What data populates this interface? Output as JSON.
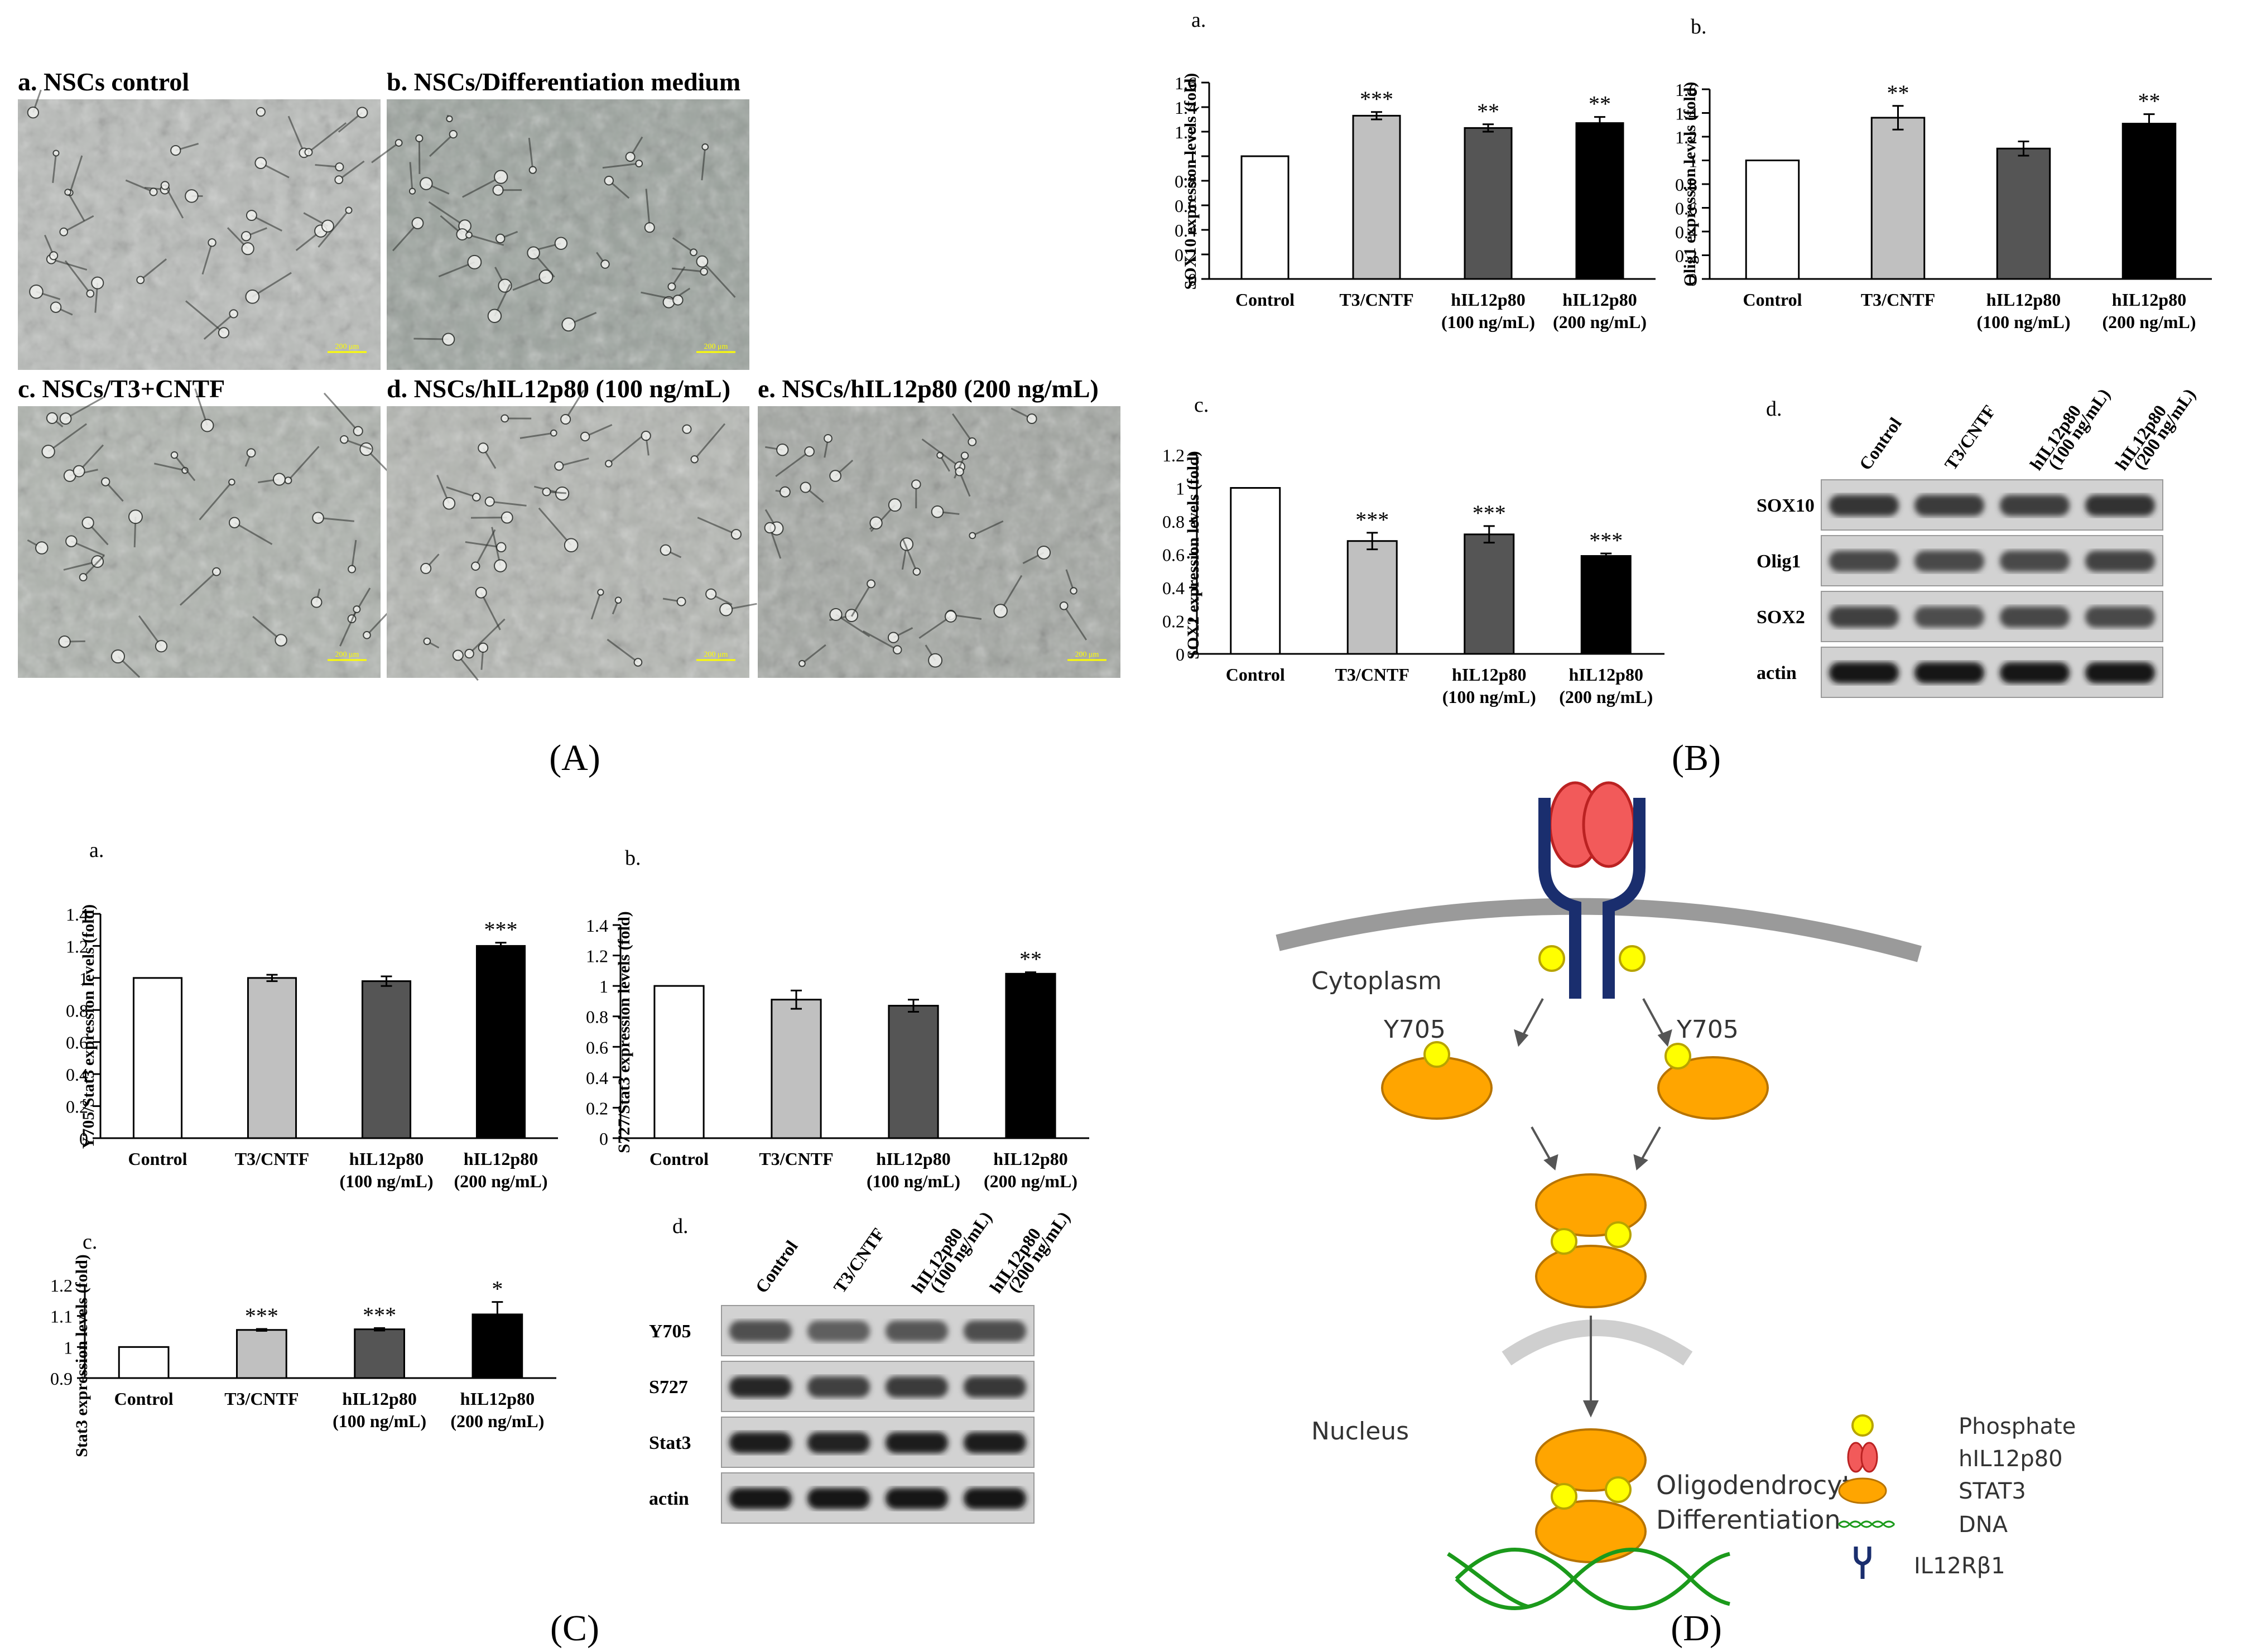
{
  "panel_labels": {
    "A": "(A)",
    "B": "(B)",
    "C": "(C)",
    "D": "(D)"
  },
  "micrographs": [
    {
      "label": "a. NSCs control",
      "scale": "200 μm"
    },
    {
      "label": "b. NSCs/Differentiation medium",
      "scale": "200 μm"
    },
    {
      "label": "c. NSCs/T3+CNTF",
      "scale": "200 μm"
    },
    {
      "label": "d. NSCs/hIL12p80 (100 ng/mL)",
      "scale": "200 μm"
    },
    {
      "label": "e. NSCs/hIL12p80 (200 ng/mL)",
      "scale": "200 μm"
    }
  ],
  "categories": [
    [
      "Control"
    ],
    [
      "T3/CNTF"
    ],
    [
      "hIL12p80",
      "(100 ng/mL)"
    ],
    [
      "hIL12p80",
      "(200 ng/mL)"
    ]
  ],
  "bar_colors": [
    "#ffffff",
    "#c0c0c0",
    "#555555",
    "#000000"
  ],
  "chart_data": [
    {
      "type": "bar",
      "panel": "B",
      "sublabel": "a.",
      "ylabel": "SOX10 expression levels (fold)",
      "ylim": [
        0,
        1.6
      ],
      "yticks": [
        "0",
        "0.2",
        "0.4",
        "0.6",
        "0.8",
        "1",
        "1.2",
        "1.4",
        "1.6"
      ],
      "values": [
        1.0,
        1.33,
        1.23,
        1.27
      ],
      "errors": [
        0,
        0.03,
        0.03,
        0.05
      ],
      "significance": [
        "",
        "***",
        "**",
        "**"
      ]
    },
    {
      "type": "bar",
      "panel": "B",
      "sublabel": "b.",
      "ylabel": "Olig1 expression levels (fold)",
      "ylim": [
        0,
        1.6
      ],
      "yticks": [
        "0",
        "0.2",
        "0.4",
        "0.6",
        "0.8",
        "1",
        "1.2",
        "1.4",
        "1.6"
      ],
      "values": [
        1.0,
        1.36,
        1.1,
        1.31
      ],
      "errors": [
        0,
        0.1,
        0.06,
        0.08
      ],
      "significance": [
        "",
        "**",
        "",
        "**"
      ]
    },
    {
      "type": "bar",
      "panel": "B",
      "sublabel": "c.",
      "ylabel": "SOX2 expression levels (fold)",
      "ylim": [
        0,
        1.2
      ],
      "yticks": [
        "0",
        "0.2",
        "0.4",
        "0.6",
        "0.8",
        "1",
        "1.2"
      ],
      "values": [
        1.0,
        0.68,
        0.72,
        0.59
      ],
      "errors": [
        0,
        0.05,
        0.05,
        0.015
      ],
      "significance": [
        "",
        "***",
        "***",
        "***"
      ]
    },
    {
      "type": "bar",
      "panel": "C",
      "sublabel": "a.",
      "ylabel": "Y705/Stat3 expression levels (fold)",
      "ylim": [
        0,
        1.4
      ],
      "yticks": [
        "0",
        "0.2",
        "0.4",
        "0.6",
        "0.8",
        "1",
        "1.2",
        "1.4"
      ],
      "values": [
        1.0,
        1.0,
        0.98,
        1.2
      ],
      "errors": [
        0,
        0.02,
        0.03,
        0.02
      ],
      "significance": [
        "",
        "",
        "",
        "***"
      ]
    },
    {
      "type": "bar",
      "panel": "C",
      "sublabel": "b.",
      "ylabel": "S727/Stat3 expression levels (fold)",
      "ylim": [
        0,
        1.4
      ],
      "yticks": [
        "0",
        "0.2",
        "0.4",
        "0.6",
        "0.8",
        "1",
        "1.2",
        "1.4"
      ],
      "values": [
        1.0,
        0.91,
        0.87,
        1.08
      ],
      "errors": [
        0,
        0.06,
        0.04,
        0.01
      ],
      "significance": [
        "",
        "",
        "",
        "**"
      ]
    },
    {
      "type": "bar",
      "panel": "C",
      "sublabel": "c.",
      "ylabel": "Stat3 expression levels (fold)",
      "ylim": [
        0.9,
        1.2
      ],
      "yticks": [
        "0.9",
        "1",
        "1.1",
        "1.2"
      ],
      "values": [
        1.0,
        1.055,
        1.057,
        1.105
      ],
      "errors": [
        0,
        0.003,
        0.004,
        0.04
      ],
      "significance": [
        "",
        "***",
        "***",
        "*"
      ]
    }
  ],
  "blots": [
    {
      "panel": "B",
      "sublabel": "d.",
      "lanes": [
        "Control",
        "T3/CNTF",
        "hIL12p80 (100 ng/mL)",
        "hIL12p80 (200 ng/mL)"
      ],
      "rows": [
        "SOX10",
        "Olig1",
        "SOX2",
        "actin"
      ]
    },
    {
      "panel": "C",
      "sublabel": "d.",
      "lanes": [
        "Control",
        "T3/CNTF",
        "hIL12p80 (100 ng/mL)",
        "hIL12p80 (200 ng/mL)"
      ],
      "rows": [
        "Y705",
        "S727",
        "Stat3",
        "actin"
      ]
    }
  ],
  "schematic": {
    "cytoplasm": "Cytoplasm",
    "nucleus": "Nucleus",
    "site_left": "Y705",
    "site_right": "Y705",
    "outcome": [
      "Oligodendrocyte",
      "Differentiation"
    ],
    "legend": [
      {
        "label": "Phosphate",
        "icon": "phosphate-circle",
        "color": "#ffff00"
      },
      {
        "label": "hIL12p80",
        "icon": "hil12p80-ovals",
        "color": "#ff5555"
      },
      {
        "label": "STAT3",
        "icon": "stat3-ellipse",
        "color": "#ffa500"
      },
      {
        "label": "DNA",
        "icon": "dna-helix",
        "color": "#22aa22"
      },
      {
        "label": "IL12Rβ1",
        "icon": "receptor-y",
        "color": "#1a2e6e"
      }
    ]
  }
}
